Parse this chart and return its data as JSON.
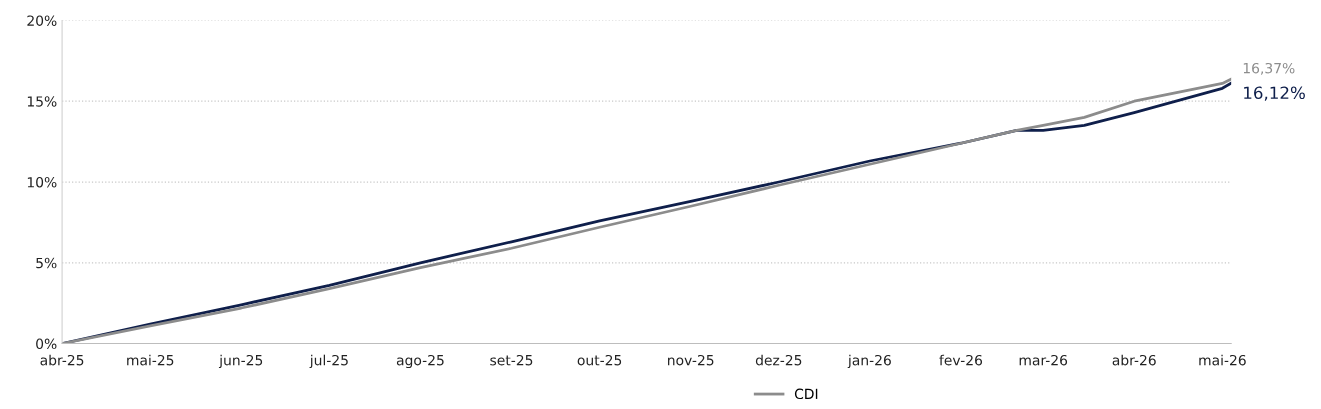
{
  "chart_data": {
    "type": "line",
    "x": [
      "2025-04-01",
      "2025-05-01",
      "2025-06-01",
      "2025-07-01",
      "2025-08-01",
      "2025-09-01",
      "2025-10-01",
      "2025-11-01",
      "2025-12-01",
      "2026-01-01",
      "2026-02-01",
      "2026-02-20",
      "2026-03-01",
      "2026-03-15",
      "2026-04-01",
      "2026-05-01",
      "2026-05-04"
    ],
    "series": [
      {
        "color": "#0f1f4b",
        "values": [
          0,
          1.2,
          2.4,
          3.6,
          5.0,
          6.3,
          7.6,
          8.8,
          10.0,
          11.3,
          12.4,
          13.2,
          13.2,
          13.5,
          14.3,
          15.8,
          16.12
        ]
      },
      {
        "name": "CDI",
        "color": "#8c8c8c",
        "values": [
          0,
          1.1,
          2.2,
          3.4,
          4.7,
          5.9,
          7.2,
          8.5,
          9.8,
          11.1,
          12.4,
          13.2,
          13.5,
          14.0,
          15.0,
          16.1,
          16.37
        ]
      }
    ],
    "xlim": [
      "2025-04-01",
      "2026-05-04"
    ],
    "xticks": [
      {
        "value": "2025-04-01",
        "label": "abr-25"
      },
      {
        "value": "2025-05-01",
        "label": "mai-25"
      },
      {
        "value": "2025-06-01",
        "label": "jun-25"
      },
      {
        "value": "2025-07-01",
        "label": "jul-25"
      },
      {
        "value": "2025-08-01",
        "label": "ago-25"
      },
      {
        "value": "2025-09-01",
        "label": "set-25"
      },
      {
        "value": "2025-10-01",
        "label": "out-25"
      },
      {
        "value": "2025-11-01",
        "label": "nov-25"
      },
      {
        "value": "2025-12-01",
        "label": "dez-25"
      },
      {
        "value": "2026-01-01",
        "label": "jan-26"
      },
      {
        "value": "2026-02-01",
        "label": "fev-26"
      },
      {
        "value": "2026-03-01",
        "label": "mar-26"
      },
      {
        "value": "2026-04-01",
        "label": "abr-26"
      },
      {
        "value": "2026-05-01",
        "label": "mai-26"
      }
    ],
    "ylim": [
      0,
      20
    ],
    "yticks": [
      {
        "value": 0,
        "label": "0%"
      },
      {
        "value": 5,
        "label": "5%"
      },
      {
        "value": 10,
        "label": "10%"
      },
      {
        "value": 15,
        "label": "15%"
      },
      {
        "value": 20,
        "label": "20%"
      }
    ],
    "grid": "y",
    "legend": "bottom",
    "marker": "none",
    "line_style": "solid",
    "annotations": [
      {
        "text": "16,37%",
        "x": "2026-05-04",
        "y": 16.37
      },
      {
        "text": "16,12%",
        "x": "2026-05-04",
        "y": 16.12
      }
    ]
  }
}
